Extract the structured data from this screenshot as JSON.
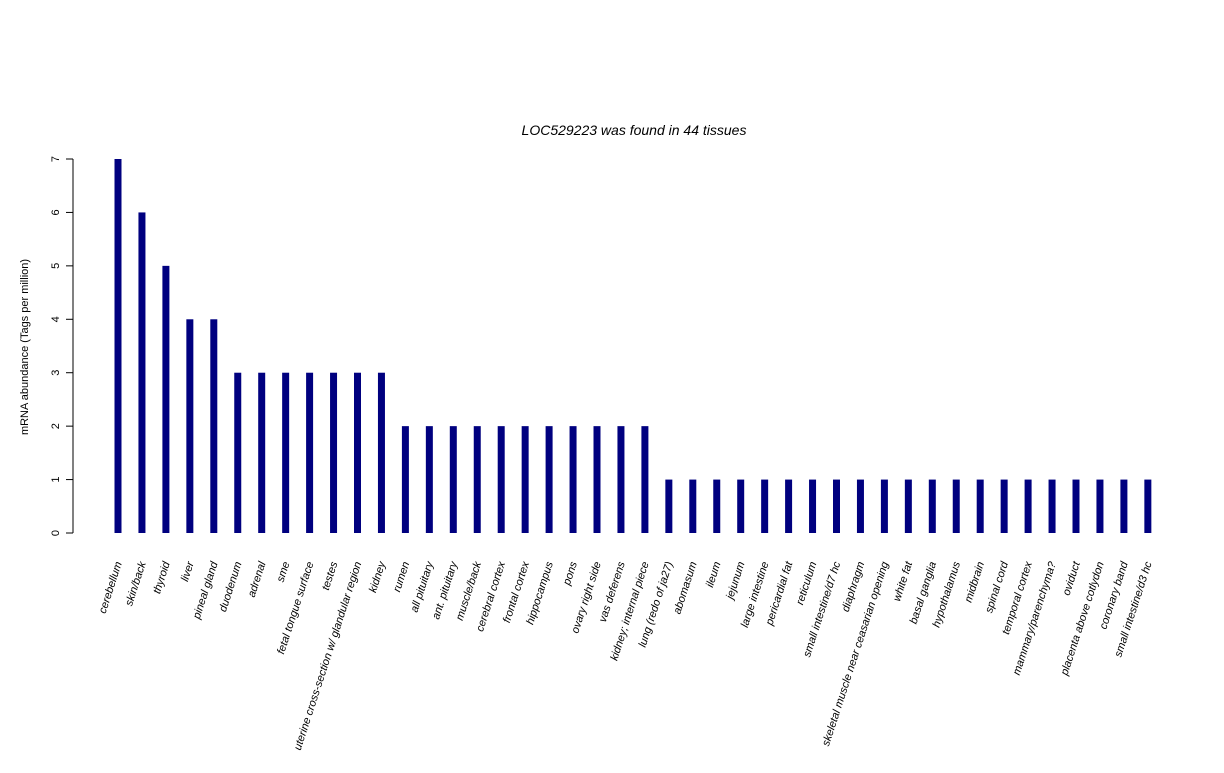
{
  "chart_data": {
    "type": "bar",
    "title": "LOC529223  was found in  44  tissues",
    "xlabel": "",
    "ylabel": "mRNA abundance (Tags per million)",
    "ylim": [
      0,
      7
    ],
    "yticks": [
      0,
      1,
      2,
      3,
      4,
      5,
      6,
      7
    ],
    "grid": false,
    "legend": "none",
    "bar_color": "#00007f",
    "categories": [
      "cerebellum",
      "skin/back",
      "thyroid",
      "liver",
      "pineal gland",
      "duodenum",
      "adrenal",
      "sme",
      "fetal tongue surface",
      "testes",
      "uterine cross-section w/ glandular region",
      "kidney",
      "rumen",
      "all pituitary",
      "ant. pituitary",
      "muscle/back",
      "cerebral cortex",
      "frontal cortex",
      "hippocampus",
      "pons",
      "ovary right side",
      "vas deferens",
      "kidney; internal piece",
      "lung (redo of ja27)",
      "abomasum",
      "ileum",
      "jejunum",
      "large intestine",
      "pericardial fat",
      "reticulum",
      "small intestine/d7 hc",
      "diaphragm",
      "skeletal muscle near ceasarian opening",
      "white fat",
      "basal ganglia",
      "hypothalamus",
      "midbrain",
      "spinal cord",
      "temporal cortex",
      "mammary/parenchyma?",
      "oviduct",
      "placenta above cotlydon",
      "coronary band",
      "small intestine/d3 hc"
    ],
    "values": [
      7,
      6,
      5,
      4,
      4,
      3,
      3,
      3,
      3,
      3,
      3,
      3,
      2,
      2,
      2,
      2,
      2,
      2,
      2,
      2,
      2,
      2,
      2,
      1,
      1,
      1,
      1,
      1,
      1,
      1,
      1,
      1,
      1,
      1,
      1,
      1,
      1,
      1,
      1,
      1,
      1,
      1,
      1,
      1
    ]
  }
}
